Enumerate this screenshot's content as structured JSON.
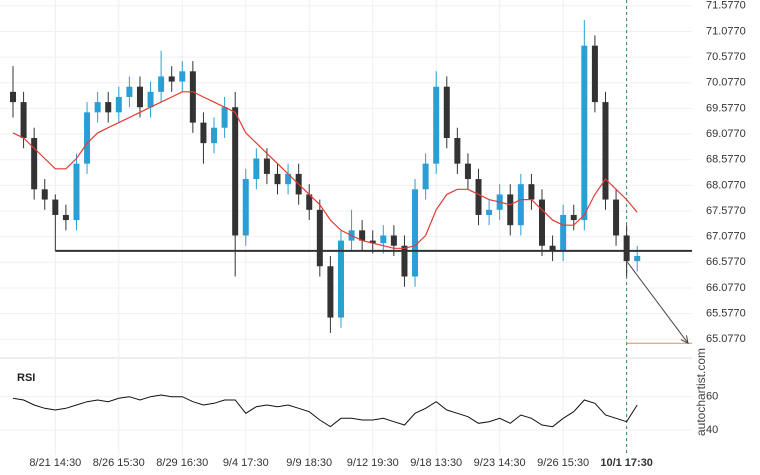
{
  "chart_data": {
    "type": "candlestick",
    "categories": [
      null,
      null,
      null,
      null,
      "8/21 14:30",
      null,
      null,
      null,
      null,
      null,
      "8/26 15:30",
      null,
      null,
      null,
      null,
      null,
      "8/29 16:30",
      null,
      null,
      null,
      null,
      null,
      "9/4 17:30",
      null,
      null,
      null,
      null,
      null,
      "9/9 18:30",
      null,
      null,
      null,
      null,
      null,
      "9/12 19:30",
      null,
      null,
      null,
      null,
      null,
      "9/18 13:30",
      null,
      null,
      null,
      null,
      null,
      "9/23 14:30",
      null,
      null,
      null,
      null,
      null,
      "9/26 15:30",
      null,
      null,
      null,
      null,
      null,
      "10/1 17:30",
      null
    ],
    "open": [
      69.9,
      69.7,
      69.0,
      68.0,
      67.8,
      67.5,
      67.4,
      68.5,
      69.5,
      69.7,
      69.5,
      69.8,
      70.0,
      69.6,
      69.9,
      70.2,
      70.1,
      70.3,
      69.3,
      68.9,
      69.2,
      69.6,
      67.1,
      68.2,
      68.6,
      68.3,
      68.1,
      68.3,
      67.9,
      67.6,
      66.5,
      65.5,
      67.0,
      67.2,
      67.0,
      66.95,
      67.1,
      66.9,
      66.3,
      68.0,
      68.5,
      70.0,
      69.0,
      68.5,
      68.2,
      67.5,
      67.6,
      67.9,
      67.3,
      68.1,
      67.8,
      66.9,
      66.8,
      67.5,
      67.4,
      70.8,
      69.7,
      67.8,
      67.1,
      66.6
    ],
    "high": [
      70.4,
      69.9,
      69.2,
      68.2,
      67.9,
      67.7,
      68.7,
      69.7,
      69.9,
      69.9,
      70.0,
      70.2,
      70.2,
      70.1,
      70.7,
      70.4,
      70.5,
      70.5,
      69.5,
      69.4,
      69.8,
      69.9,
      68.4,
      68.8,
      68.8,
      68.5,
      68.5,
      68.5,
      68.1,
      67.8,
      66.7,
      67.2,
      67.6,
      67.4,
      67.2,
      67.3,
      67.3,
      67.1,
      68.2,
      68.7,
      70.3,
      70.2,
      69.2,
      68.7,
      68.4,
      67.8,
      68.1,
      68.1,
      68.3,
      68.3,
      68.0,
      67.1,
      67.7,
      67.7,
      71.3,
      71.0,
      69.9,
      68.0,
      67.3,
      66.9
    ],
    "low": [
      69.4,
      68.8,
      67.8,
      67.6,
      66.8,
      67.2,
      67.2,
      68.3,
      69.3,
      69.3,
      69.3,
      69.6,
      69.4,
      69.4,
      69.7,
      69.9,
      69.9,
      69.1,
      68.5,
      68.7,
      69.0,
      66.3,
      66.9,
      68.0,
      68.1,
      67.9,
      67.9,
      67.7,
      67.4,
      66.3,
      65.2,
      65.3,
      66.8,
      66.8,
      66.75,
      66.75,
      66.7,
      66.1,
      66.1,
      67.8,
      68.3,
      68.8,
      68.3,
      68.0,
      67.3,
      67.3,
      67.4,
      67.1,
      67.1,
      67.6,
      66.7,
      66.6,
      66.6,
      67.2,
      67.2,
      69.5,
      67.6,
      66.9,
      66.3,
      66.4
    ],
    "close": [
      69.7,
      69.0,
      68.0,
      67.8,
      67.5,
      67.4,
      68.5,
      69.5,
      69.7,
      69.5,
      69.8,
      70.0,
      69.6,
      69.9,
      70.2,
      70.1,
      70.3,
      69.3,
      68.9,
      69.2,
      69.6,
      67.1,
      68.2,
      68.6,
      68.3,
      68.1,
      68.3,
      67.9,
      67.6,
      66.5,
      65.5,
      67.0,
      67.2,
      67.0,
      66.95,
      67.1,
      66.9,
      66.3,
      68.0,
      68.5,
      70.0,
      69.0,
      68.5,
      68.2,
      67.5,
      67.6,
      67.9,
      67.3,
      68.1,
      67.8,
      66.9,
      66.8,
      67.5,
      67.4,
      70.8,
      69.7,
      67.8,
      67.1,
      66.6,
      66.7
    ],
    "up_color": "#2a9fd6",
    "down_color": "#333333",
    "moving_average": {
      "color": "#e53935",
      "values": [
        69.1,
        69.0,
        68.8,
        68.6,
        68.4,
        68.4,
        68.6,
        68.9,
        69.1,
        69.2,
        69.3,
        69.4,
        69.5,
        69.6,
        69.7,
        69.8,
        69.9,
        69.9,
        69.8,
        69.7,
        69.6,
        69.5,
        69.1,
        68.9,
        68.7,
        68.5,
        68.3,
        68.1,
        67.9,
        67.7,
        67.4,
        67.2,
        67.1,
        67.0,
        66.95,
        66.9,
        66.85,
        66.85,
        66.9,
        67.1,
        67.6,
        67.9,
        68.0,
        68.0,
        67.9,
        67.8,
        67.75,
        67.7,
        67.8,
        67.8,
        67.6,
        67.4,
        67.3,
        67.3,
        67.5,
        67.9,
        68.2,
        68.0,
        67.8,
        67.55
      ]
    },
    "support_level": 66.8,
    "target_level": 65.0,
    "target_color": "#f08a3c",
    "ylim": [
      64.77,
      71.69
    ],
    "yticks": [
      {
        "value": 71.577,
        "label": "71.5770"
      },
      {
        "value": 71.077,
        "label": "71.0770"
      },
      {
        "value": 70.577,
        "label": "70.5770"
      },
      {
        "value": 70.077,
        "label": "70.0770"
      },
      {
        "value": 69.577,
        "label": "69.5770"
      },
      {
        "value": 69.077,
        "label": "69.0770"
      },
      {
        "value": 68.577,
        "label": "68.5770"
      },
      {
        "value": 68.077,
        "label": "68.0770"
      },
      {
        "value": 67.577,
        "label": "67.5770"
      },
      {
        "value": 67.077,
        "label": "67.0770"
      },
      {
        "value": 66.577,
        "label": "66.5770"
      },
      {
        "value": 66.077,
        "label": "66.0770"
      },
      {
        "value": 65.577,
        "label": "65.5770"
      },
      {
        "value": 65.077,
        "label": "65.0770"
      }
    ],
    "grid": true,
    "rsi": {
      "title": "RSI",
      "color": "#111111",
      "ylim": [
        28,
        79
      ],
      "yticks": [
        40,
        60
      ],
      "values": [
        59,
        58,
        55,
        53,
        52,
        53,
        55,
        57,
        58,
        57,
        59,
        60,
        58,
        60,
        61,
        60,
        60,
        57,
        55,
        56,
        58,
        58,
        50,
        54,
        55,
        54,
        55,
        53,
        51,
        46,
        42,
        47,
        47,
        46,
        46,
        47,
        45,
        43,
        50,
        53,
        57,
        52,
        50,
        48,
        44,
        45,
        47,
        44,
        49,
        47,
        43,
        42,
        47,
        51,
        58,
        56,
        49,
        47,
        45,
        55
      ]
    },
    "watermark": "autochartist.com"
  }
}
